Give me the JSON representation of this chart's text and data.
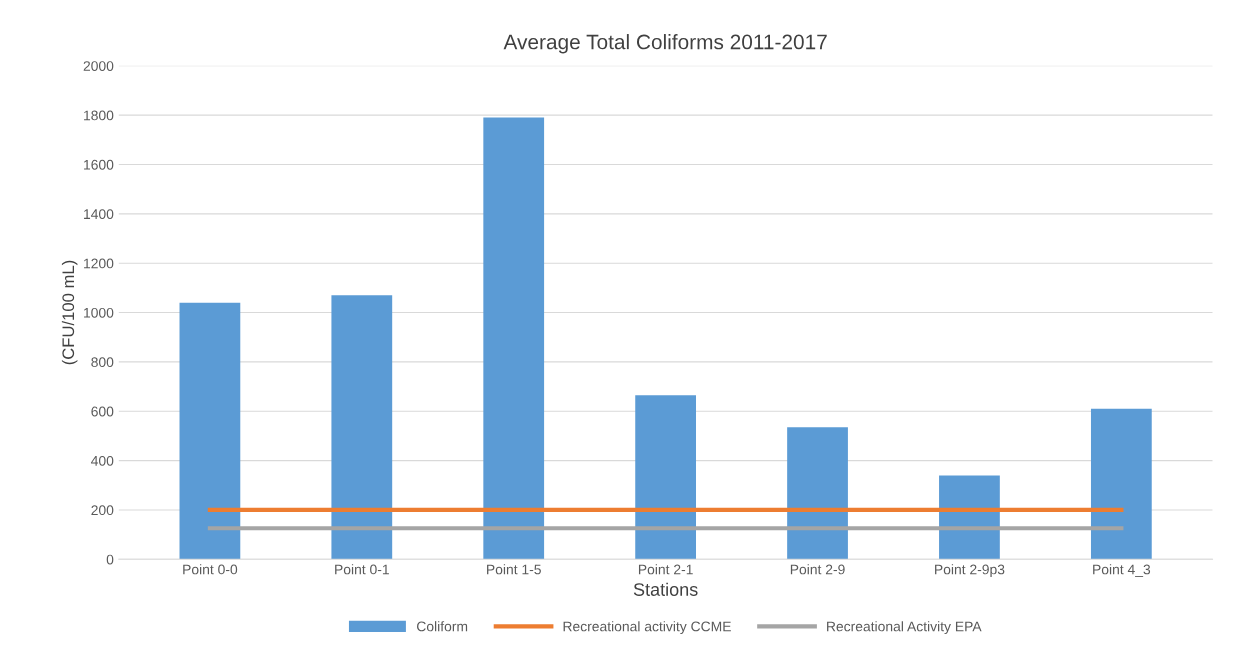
{
  "chart_data": {
    "type": "bar",
    "title": "Average Total Coliforms 2011-2017",
    "xlabel": "Stations",
    "ylabel": "(CFU/100 mL)",
    "categories": [
      "Point 0-0",
      "Point 0-1",
      "Point 1-5",
      "Point 2-1",
      "Point 2-9",
      "Point 2-9p3",
      "Point 4_3"
    ],
    "series": [
      {
        "name": "Coliform",
        "color": "#5b9bd5",
        "values": [
          1040,
          1070,
          1790,
          665,
          535,
          340,
          610
        ]
      },
      {
        "name": "Recreational activity CCME",
        "type": "line",
        "color": "#ed7d31",
        "values": [
          200,
          200,
          200,
          200,
          200,
          200,
          200
        ]
      },
      {
        "name": "Recreational Activity EPA",
        "type": "line",
        "color": "#a5a5a5",
        "values": [
          126,
          126,
          126,
          126,
          126,
          126,
          126
        ]
      }
    ],
    "ylim": [
      0,
      2000
    ],
    "yticks": [
      0,
      200,
      400,
      600,
      800,
      1000,
      1200,
      1400,
      1600,
      1800,
      2000
    ],
    "grid": "y",
    "legend": "bottom",
    "marker": "none",
    "line_style": "solid"
  }
}
